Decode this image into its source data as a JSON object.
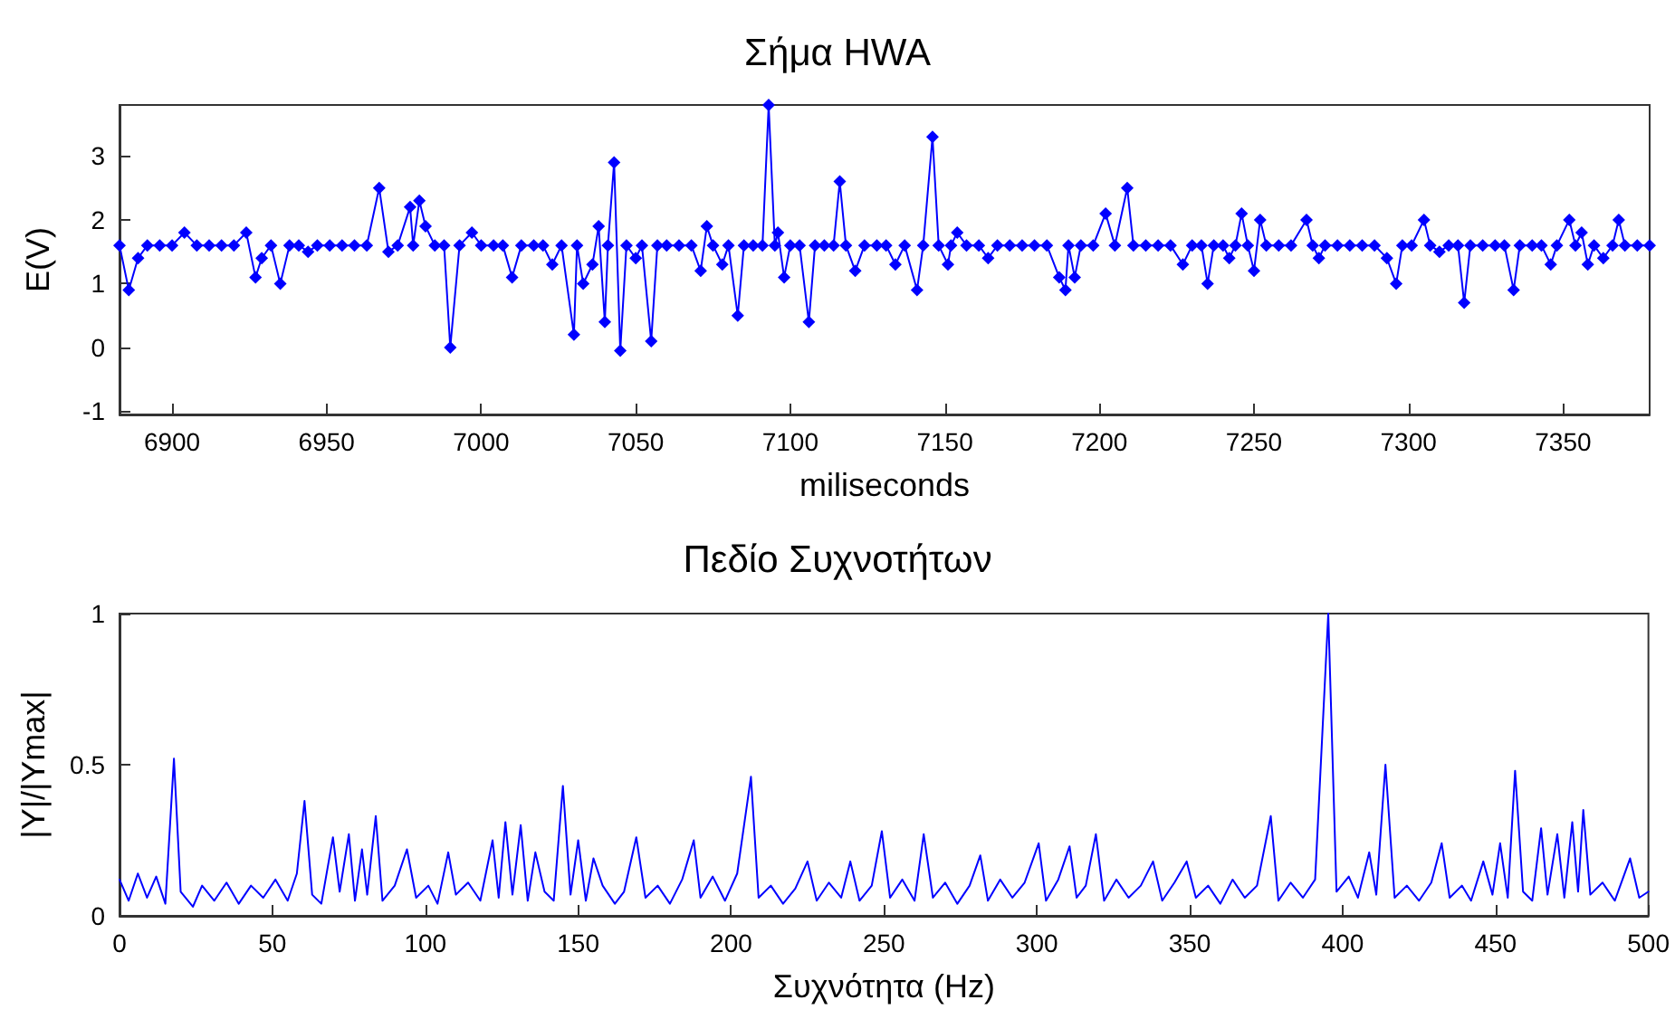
{
  "chart_data": [
    {
      "type": "line",
      "title": "Σήμα HWA",
      "xlabel": "miliseconds",
      "ylabel": "E(V)",
      "xlim": [
        6883,
        7378
      ],
      "xticks": [
        6900,
        6950,
        7000,
        7050,
        7100,
        7150,
        7200,
        7250,
        7300,
        7350
      ],
      "ylim": [
        -1.05,
        3.8
      ],
      "yticks": [
        -1,
        0,
        1,
        2,
        3
      ],
      "grid": false,
      "marker": "diamond",
      "line_style": "solid",
      "series": [
        {
          "color": "#0000ff",
          "x": [
            6883,
            6886,
            6889,
            6892,
            6896,
            6900,
            6904,
            6908,
            6912,
            6916,
            6920,
            6924,
            6927,
            6929,
            6932,
            6935,
            6938,
            6941,
            6944,
            6947,
            6951,
            6955,
            6959,
            6963,
            6967,
            6970,
            6973,
            6977,
            6978,
            6980,
            6982,
            6985,
            6988,
            6990,
            6993,
            6997,
            7000,
            7004,
            7007,
            7010,
            7013,
            7017,
            7020,
            7023,
            7026,
            7030,
            7031,
            7033,
            7036,
            7038,
            7040,
            7041,
            7043,
            7045,
            7047,
            7050,
            7052,
            7055,
            7057,
            7060,
            7064,
            7068,
            7071,
            7073,
            7075,
            7078,
            7080,
            7083,
            7085,
            7088,
            7091,
            7093,
            7095,
            7096,
            7098,
            7100,
            7103,
            7106,
            7108,
            7111,
            7114,
            7116,
            7118,
            7121,
            7124,
            7128,
            7131,
            7134,
            7137,
            7141,
            7143,
            7146,
            7148,
            7151,
            7152,
            7154,
            7157,
            7161,
            7164,
            7167,
            7171,
            7175,
            7179,
            7183,
            7187,
            7189,
            7190,
            7192,
            7194,
            7198,
            7202,
            7205,
            7209,
            7211,
            7215,
            7219,
            7223,
            7227,
            7230,
            7233,
            7235,
            7237,
            7240,
            7242,
            7244,
            7246,
            7248,
            7250,
            7252,
            7254,
            7258,
            7262,
            7267,
            7269,
            7271,
            7273,
            7277,
            7281,
            7285,
            7289,
            7293,
            7296,
            7298,
            7301,
            7305,
            7307,
            7310,
            7313,
            7316,
            7318,
            7320,
            7324,
            7328,
            7331,
            7334,
            7336,
            7340,
            7343,
            7346,
            7348,
            7352,
            7354,
            7356,
            7358,
            7360,
            7363,
            7366,
            7368,
            7370,
            7374,
            7378
          ],
          "values": [
            1.6,
            0.9,
            1.4,
            1.6,
            1.6,
            1.6,
            1.8,
            1.6,
            1.6,
            1.6,
            1.6,
            1.8,
            1.1,
            1.4,
            1.6,
            1.0,
            1.6,
            1.6,
            1.5,
            1.6,
            1.6,
            1.6,
            1.6,
            1.6,
            2.5,
            1.5,
            1.6,
            2.2,
            1.6,
            2.3,
            1.9,
            1.6,
            1.6,
            0.0,
            1.6,
            1.8,
            1.6,
            1.6,
            1.6,
            1.1,
            1.6,
            1.6,
            1.6,
            1.3,
            1.6,
            0.2,
            1.6,
            1.0,
            1.3,
            1.9,
            0.4,
            1.6,
            2.9,
            -0.05,
            1.6,
            1.4,
            1.6,
            0.1,
            1.6,
            1.6,
            1.6,
            1.6,
            1.2,
            1.9,
            1.6,
            1.3,
            1.6,
            0.5,
            1.6,
            1.6,
            1.6,
            3.8,
            1.6,
            1.8,
            1.1,
            1.6,
            1.6,
            0.4,
            1.6,
            1.6,
            1.6,
            2.6,
            1.6,
            1.2,
            1.6,
            1.6,
            1.6,
            1.3,
            1.6,
            0.9,
            1.6,
            3.3,
            1.6,
            1.3,
            1.6,
            1.8,
            1.6,
            1.6,
            1.4,
            1.6,
            1.6,
            1.6,
            1.6,
            1.6,
            1.1,
            0.9,
            1.6,
            1.1,
            1.6,
            1.6,
            2.1,
            1.6,
            2.5,
            1.6,
            1.6,
            1.6,
            1.6,
            1.3,
            1.6,
            1.6,
            1.0,
            1.6,
            1.6,
            1.4,
            1.6,
            2.1,
            1.6,
            1.2,
            2.0,
            1.6,
            1.6,
            1.6,
            2.0,
            1.6,
            1.4,
            1.6,
            1.6,
            1.6,
            1.6,
            1.6,
            1.4,
            1.0,
            1.6,
            1.6,
            2.0,
            1.6,
            1.5,
            1.6,
            1.6,
            0.7,
            1.6,
            1.6,
            1.6,
            1.6,
            0.9,
            1.6,
            1.6,
            1.6,
            1.3,
            1.6,
            2.0,
            1.6,
            1.8,
            1.3,
            1.6,
            1.4,
            1.6,
            2.0,
            1.6,
            1.6,
            1.6
          ]
        }
      ]
    },
    {
      "type": "line",
      "title": "Πεδίο Συχνοτήτων",
      "xlabel": "Συχνότητα (Hz)",
      "ylabel": "|Y|/|Ymax|",
      "xlim": [
        0,
        500
      ],
      "xticks": [
        0,
        50,
        100,
        150,
        200,
        250,
        300,
        350,
        400,
        450,
        500
      ],
      "ylim": [
        0,
        1
      ],
      "yticks": [
        0,
        0.5,
        1
      ],
      "grid": false,
      "marker": "none",
      "line_style": "solid",
      "series": [
        {
          "color": "#0000ff",
          "x": [
            0,
            3,
            6,
            9,
            12,
            15,
            17.8,
            20,
            24,
            27,
            31,
            35,
            39,
            43,
            47,
            51,
            55,
            58,
            60.5,
            63,
            66,
            69.8,
            72,
            75,
            77,
            79.3,
            81,
            83.8,
            86,
            90,
            94,
            97,
            101,
            104,
            107.5,
            110,
            114,
            118,
            122,
            124,
            126.2,
            128.5,
            131.2,
            133.5,
            136,
            139,
            142,
            145,
            147.5,
            150,
            152.5,
            155,
            158,
            162,
            165,
            169,
            172,
            176,
            180,
            184,
            187.8,
            190,
            194,
            198,
            202,
            206.5,
            209,
            213,
            217,
            221,
            225,
            228,
            232,
            236,
            239,
            242,
            246,
            249.3,
            252,
            256,
            260,
            263,
            266,
            270,
            274,
            278,
            281.5,
            284,
            288,
            292,
            296,
            300.6,
            303,
            307,
            310.7,
            313,
            316,
            319.3,
            322,
            326,
            330,
            334,
            338,
            341,
            345,
            349,
            352,
            356,
            360,
            364,
            368,
            372,
            376.5,
            379,
            383,
            387,
            391,
            395.3,
            398,
            402,
            405,
            408.7,
            411,
            414,
            417,
            421,
            425,
            429,
            432.4,
            435,
            439,
            442,
            446,
            449,
            451.5,
            454,
            456.4,
            459,
            462,
            464.9,
            467,
            470.2,
            472.5,
            475.1,
            477,
            478.7,
            481,
            485,
            489,
            494,
            497,
            500
          ],
          "values": [
            0.12,
            0.05,
            0.14,
            0.06,
            0.13,
            0.04,
            0.52,
            0.08,
            0.03,
            0.1,
            0.05,
            0.11,
            0.04,
            0.1,
            0.06,
            0.12,
            0.05,
            0.14,
            0.38,
            0.07,
            0.04,
            0.26,
            0.08,
            0.27,
            0.05,
            0.22,
            0.07,
            0.33,
            0.05,
            0.1,
            0.22,
            0.06,
            0.1,
            0.04,
            0.21,
            0.07,
            0.11,
            0.05,
            0.25,
            0.06,
            0.31,
            0.07,
            0.3,
            0.05,
            0.21,
            0.08,
            0.05,
            0.43,
            0.07,
            0.25,
            0.05,
            0.19,
            0.1,
            0.04,
            0.08,
            0.26,
            0.06,
            0.1,
            0.04,
            0.12,
            0.25,
            0.06,
            0.13,
            0.05,
            0.14,
            0.46,
            0.06,
            0.1,
            0.04,
            0.09,
            0.18,
            0.05,
            0.11,
            0.06,
            0.18,
            0.05,
            0.1,
            0.28,
            0.06,
            0.12,
            0.05,
            0.27,
            0.06,
            0.11,
            0.04,
            0.1,
            0.2,
            0.05,
            0.12,
            0.06,
            0.11,
            0.24,
            0.05,
            0.12,
            0.23,
            0.06,
            0.1,
            0.27,
            0.05,
            0.12,
            0.06,
            0.1,
            0.18,
            0.05,
            0.11,
            0.18,
            0.06,
            0.1,
            0.04,
            0.12,
            0.06,
            0.1,
            0.33,
            0.05,
            0.11,
            0.06,
            0.12,
            1,
            0.08,
            0.13,
            0.06,
            0.21,
            0.07,
            0.5,
            0.06,
            0.1,
            0.05,
            0.11,
            0.24,
            0.06,
            0.1,
            0.05,
            0.18,
            0.07,
            0.24,
            0.06,
            0.48,
            0.08,
            0.05,
            0.29,
            0.07,
            0.27,
            0.06,
            0.31,
            0.08,
            0.35,
            0.07,
            0.11,
            0.05,
            0.19,
            0.06,
            0.08
          ]
        }
      ]
    }
  ]
}
